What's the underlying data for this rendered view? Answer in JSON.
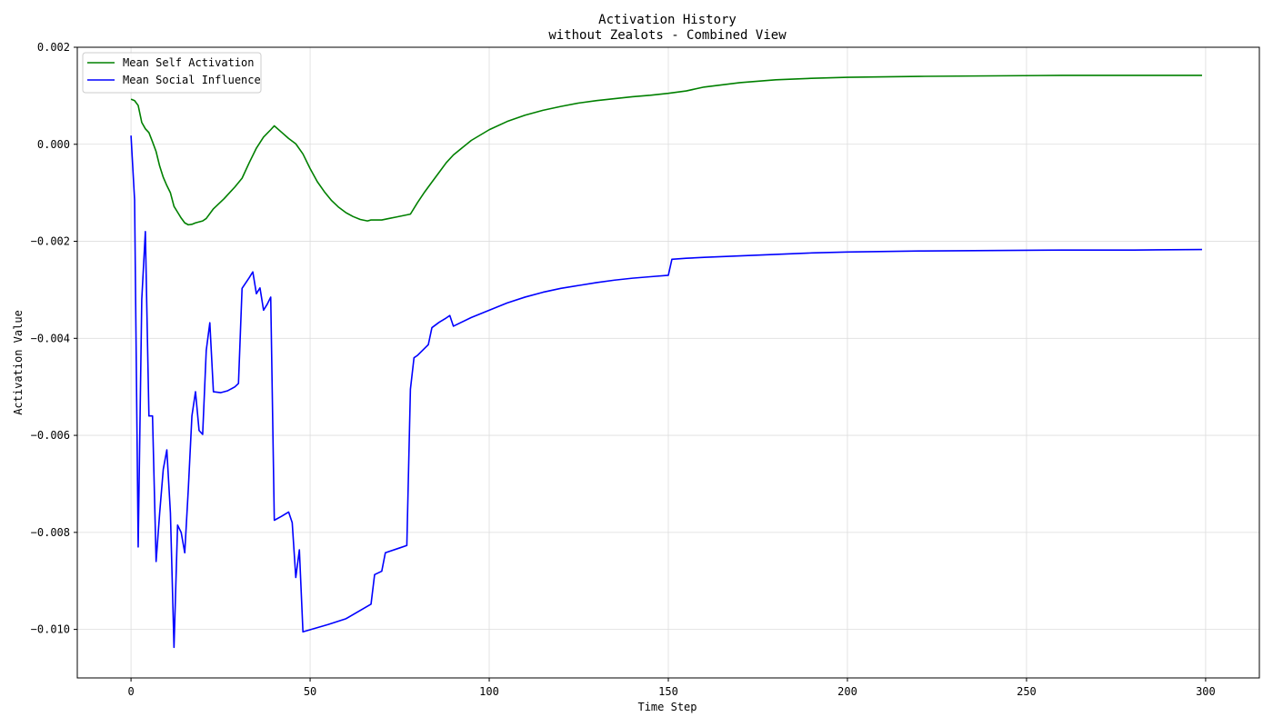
{
  "chart_data": {
    "type": "line",
    "title": "Activation History",
    "subtitle": "without Zealots - Combined View",
    "xlabel": "Time Step",
    "ylabel": "Activation Value",
    "xlim": [
      -15,
      315
    ],
    "ylim": [
      -0.011,
      0.002
    ],
    "xticks": [
      0,
      50,
      100,
      150,
      200,
      250,
      300
    ],
    "yticks": [
      -0.01,
      -0.008,
      -0.006,
      -0.004,
      -0.002,
      0.0,
      0.002
    ],
    "xtick_labels": [
      "0",
      "50",
      "100",
      "150",
      "200",
      "250",
      "300"
    ],
    "ytick_labels": [
      "−0.010",
      "−0.008",
      "−0.006",
      "−0.004",
      "−0.002",
      "0.000",
      "0.002"
    ],
    "grid": true,
    "legend_position": "top-left",
    "series": [
      {
        "name": "Mean Self Activation",
        "color": "#008000",
        "points": [
          [
            0,
            0.00093
          ],
          [
            1,
            0.0009
          ],
          [
            2,
            0.0008
          ],
          [
            3,
            0.00045
          ],
          [
            4,
            0.00032
          ],
          [
            5,
            0.00024
          ],
          [
            6,
            5e-05
          ],
          [
            7,
            -0.00015
          ],
          [
            8,
            -0.00045
          ],
          [
            9,
            -0.00068
          ],
          [
            10,
            -0.00085
          ],
          [
            11,
            -0.001
          ],
          [
            12,
            -0.00128
          ],
          [
            13,
            -0.0014
          ],
          [
            14,
            -0.00152
          ],
          [
            15,
            -0.00162
          ],
          [
            16,
            -0.00166
          ],
          [
            17,
            -0.00165
          ],
          [
            18,
            -0.00162
          ],
          [
            20,
            -0.00158
          ],
          [
            21,
            -0.00153
          ],
          [
            23,
            -0.00133
          ],
          [
            26,
            -0.00112
          ],
          [
            29,
            -0.00088
          ],
          [
            31,
            -0.0007
          ],
          [
            33,
            -0.00038
          ],
          [
            35,
            -8e-05
          ],
          [
            37,
            0.00015
          ],
          [
            39,
            0.0003
          ],
          [
            40,
            0.00038
          ],
          [
            42,
            0.00025
          ],
          [
            44,
            0.00012
          ],
          [
            46,
            1e-05
          ],
          [
            48,
            -0.0002
          ],
          [
            50,
            -0.0005
          ],
          [
            52,
            -0.00077
          ],
          [
            54,
            -0.00098
          ],
          [
            56,
            -0.00116
          ],
          [
            58,
            -0.0013
          ],
          [
            60,
            -0.00141
          ],
          [
            62,
            -0.00149
          ],
          [
            64,
            -0.00155
          ],
          [
            66,
            -0.00158
          ],
          [
            67,
            -0.00156
          ],
          [
            68,
            -0.00156
          ],
          [
            70,
            -0.00156
          ],
          [
            72,
            -0.00153
          ],
          [
            74,
            -0.0015
          ],
          [
            76,
            -0.00147
          ],
          [
            78,
            -0.00144
          ],
          [
            80,
            -0.0012
          ],
          [
            82,
            -0.00098
          ],
          [
            84,
            -0.00078
          ],
          [
            86,
            -0.00058
          ],
          [
            88,
            -0.00038
          ],
          [
            90,
            -0.00022
          ],
          [
            95,
            8e-05
          ],
          [
            100,
            0.0003
          ],
          [
            105,
            0.00047
          ],
          [
            110,
            0.0006
          ],
          [
            115,
            0.0007
          ],
          [
            120,
            0.00078
          ],
          [
            125,
            0.00085
          ],
          [
            130,
            0.0009
          ],
          [
            135,
            0.00094
          ],
          [
            140,
            0.00098
          ],
          [
            145,
            0.00101
          ],
          [
            150,
            0.00105
          ],
          [
            155,
            0.0011
          ],
          [
            160,
            0.00118
          ],
          [
            170,
            0.00127
          ],
          [
            180,
            0.00133
          ],
          [
            190,
            0.00136
          ],
          [
            200,
            0.00138
          ],
          [
            220,
            0.0014
          ],
          [
            240,
            0.00141
          ],
          [
            260,
            0.00142
          ],
          [
            280,
            0.00142
          ],
          [
            299,
            0.00142
          ]
        ]
      },
      {
        "name": "Mean Social Influence",
        "color": "#0000ff",
        "points": [
          [
            0,
            0.00018
          ],
          [
            1,
            -0.00115
          ],
          [
            2,
            -0.0083
          ],
          [
            3,
            -0.0032
          ],
          [
            4,
            -0.0018
          ],
          [
            5,
            -0.0056
          ],
          [
            6,
            -0.0056
          ],
          [
            7,
            -0.0086
          ],
          [
            8,
            -0.0076
          ],
          [
            9,
            -0.0067
          ],
          [
            10,
            -0.0063
          ],
          [
            11,
            -0.0076
          ],
          [
            12,
            -0.01037
          ],
          [
            13,
            -0.00785
          ],
          [
            14,
            -0.008
          ],
          [
            15,
            -0.00842
          ],
          [
            16,
            -0.0071
          ],
          [
            17,
            -0.0056
          ],
          [
            18,
            -0.0051
          ],
          [
            19,
            -0.0059
          ],
          [
            20,
            -0.00598
          ],
          [
            21,
            -0.00425
          ],
          [
            22,
            -0.00368
          ],
          [
            23,
            -0.0051
          ],
          [
            25,
            -0.00512
          ],
          [
            27,
            -0.00508
          ],
          [
            29,
            -0.005
          ],
          [
            30,
            -0.00493
          ],
          [
            31,
            -0.00297
          ],
          [
            33,
            -0.00275
          ],
          [
            34,
            -0.00263
          ],
          [
            35,
            -0.00308
          ],
          [
            36,
            -0.00296
          ],
          [
            37,
            -0.00342
          ],
          [
            38,
            -0.0033
          ],
          [
            39,
            -0.00315
          ],
          [
            40,
            -0.00775
          ],
          [
            42,
            -0.00767
          ],
          [
            44,
            -0.00758
          ],
          [
            45,
            -0.0078
          ],
          [
            46,
            -0.00893
          ],
          [
            47,
            -0.00836
          ],
          [
            48,
            -0.01005
          ],
          [
            55,
            -0.0099
          ],
          [
            60,
            -0.00978
          ],
          [
            67,
            -0.00948
          ],
          [
            68,
            -0.00887
          ],
          [
            70,
            -0.0088
          ],
          [
            71,
            -0.00842
          ],
          [
            75,
            -0.00832
          ],
          [
            77,
            -0.00827
          ],
          [
            78,
            -0.00505
          ],
          [
            79,
            -0.0044
          ],
          [
            80,
            -0.00435
          ],
          [
            83,
            -0.00413
          ],
          [
            84,
            -0.00378
          ],
          [
            86,
            -0.00367
          ],
          [
            88,
            -0.00358
          ],
          [
            89,
            -0.00353
          ],
          [
            90,
            -0.00375
          ],
          [
            95,
            -0.00357
          ],
          [
            100,
            -0.00342
          ],
          [
            105,
            -0.00327
          ],
          [
            110,
            -0.00315
          ],
          [
            115,
            -0.00305
          ],
          [
            120,
            -0.00297
          ],
          [
            125,
            -0.00291
          ],
          [
            130,
            -0.00285
          ],
          [
            135,
            -0.0028
          ],
          [
            140,
            -0.00276
          ],
          [
            145,
            -0.00273
          ],
          [
            150,
            -0.0027
          ],
          [
            151,
            -0.00237
          ],
          [
            155,
            -0.00235
          ],
          [
            160,
            -0.00233
          ],
          [
            170,
            -0.0023
          ],
          [
            180,
            -0.00227
          ],
          [
            190,
            -0.00224
          ],
          [
            200,
            -0.00222
          ],
          [
            220,
            -0.0022
          ],
          [
            240,
            -0.00219
          ],
          [
            260,
            -0.00218
          ],
          [
            280,
            -0.00218
          ],
          [
            299,
            -0.00217
          ]
        ]
      }
    ]
  }
}
